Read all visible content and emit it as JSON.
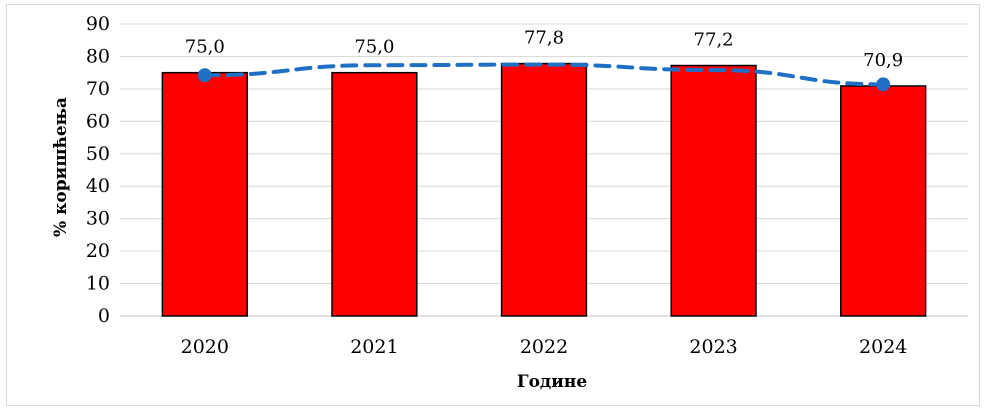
{
  "chart_data": {
    "type": "bar",
    "categories": [
      "2020",
      "2021",
      "2022",
      "2023",
      "2024"
    ],
    "values": [
      75.0,
      75.0,
      77.8,
      77.2,
      70.9
    ],
    "value_labels": [
      "75,0",
      "75,0",
      "77,8",
      "77,2",
      "70,9"
    ],
    "xlabel": "Године",
    "ylabel": "% коришћења",
    "ylim": [
      0,
      90
    ],
    "yticks": [
      0,
      10,
      20,
      30,
      40,
      50,
      60,
      70,
      80,
      90
    ],
    "grid": true,
    "legend": "none",
    "bar_color": "#ff0000",
    "bar_edge_color": "#000000",
    "trendline": {
      "style": "dashed",
      "color": "#1f6fc5",
      "points": [
        74.2,
        77.3,
        77.5,
        75.8,
        71.4
      ]
    }
  }
}
